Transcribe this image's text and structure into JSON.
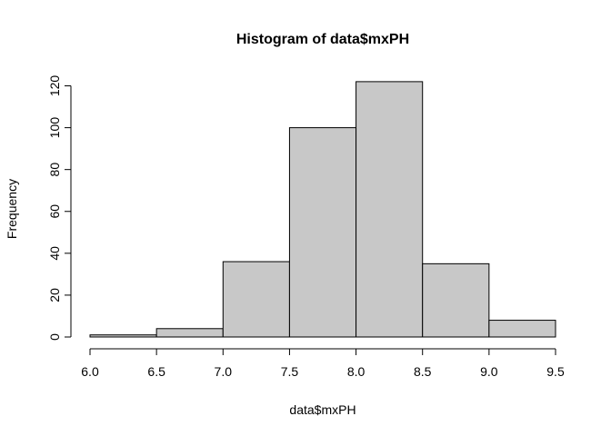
{
  "chart_data": {
    "type": "bar",
    "title": "Histogram of data$mxPH",
    "xlabel": "data$mxPH",
    "ylabel": "Frequency",
    "bins": [
      {
        "from": 6.0,
        "to": 6.5,
        "count": 1
      },
      {
        "from": 6.5,
        "to": 7.0,
        "count": 4
      },
      {
        "from": 7.0,
        "to": 7.5,
        "count": 36
      },
      {
        "from": 7.5,
        "to": 8.0,
        "count": 100
      },
      {
        "from": 8.0,
        "to": 8.5,
        "count": 122
      },
      {
        "from": 8.5,
        "to": 9.0,
        "count": 35
      },
      {
        "from": 9.0,
        "to": 9.5,
        "count": 8
      }
    ],
    "xlim": [
      6.0,
      9.5
    ],
    "ylim": [
      0,
      120
    ],
    "x_ticks": [
      "6.0",
      "6.5",
      "7.0",
      "7.5",
      "8.0",
      "8.5",
      "9.0",
      "9.5"
    ],
    "y_ticks": [
      "0",
      "20",
      "40",
      "60",
      "80",
      "100",
      "120"
    ],
    "bar_color": "#c8c8c8",
    "grid": false,
    "legend": "none"
  }
}
